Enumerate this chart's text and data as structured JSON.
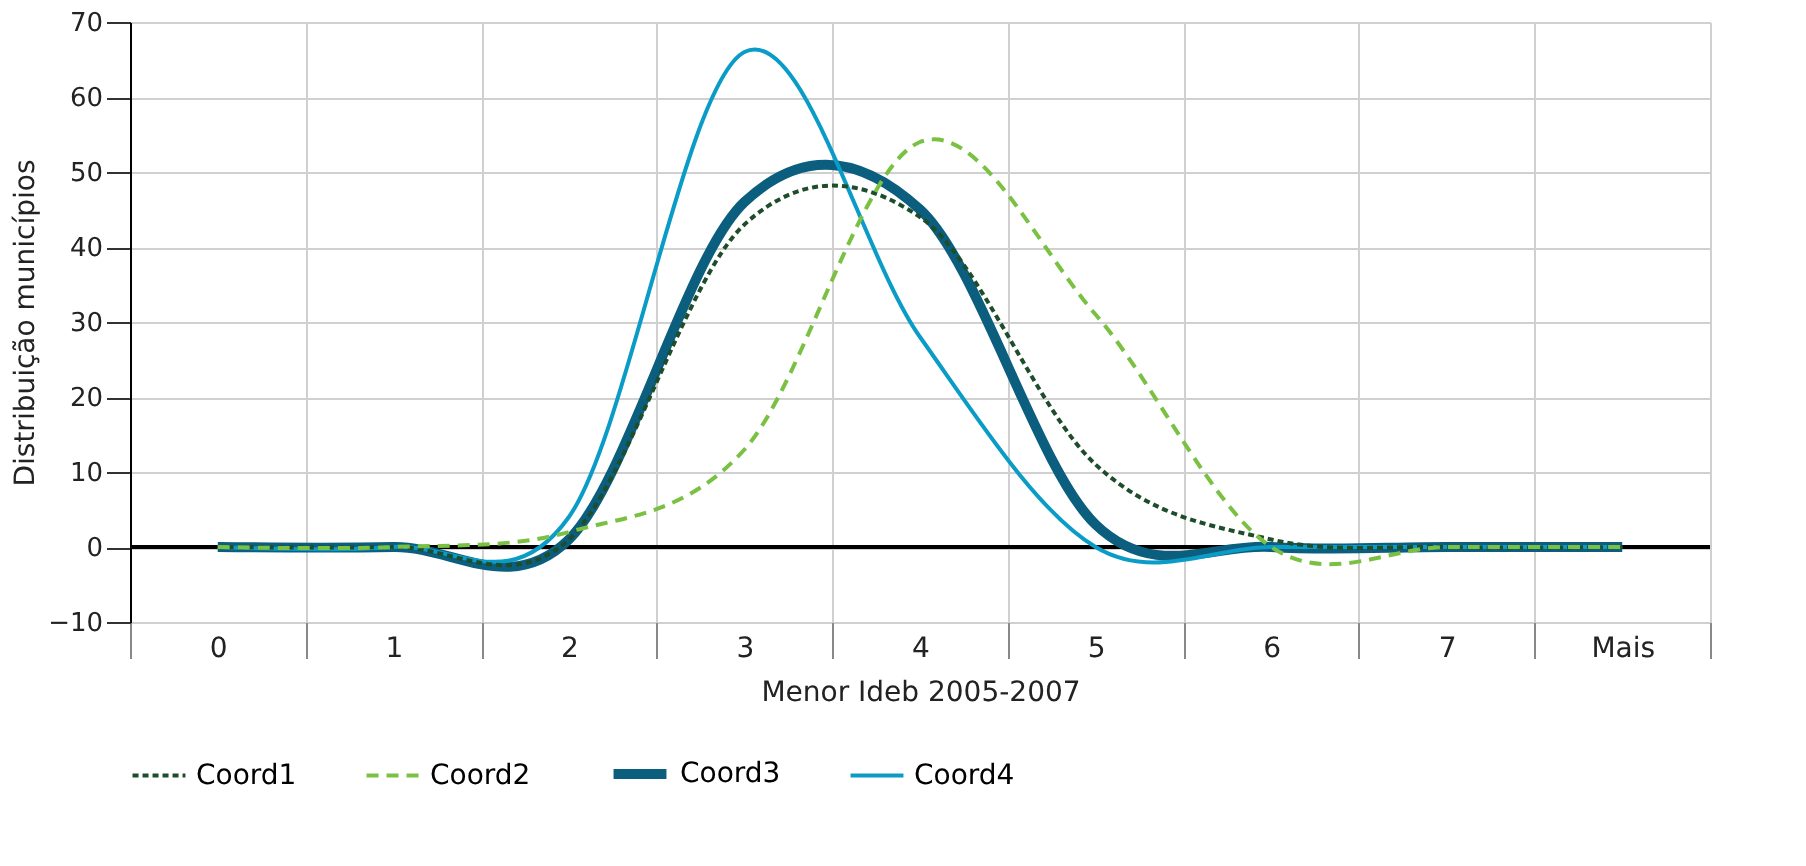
{
  "chart_data": {
    "type": "line",
    "xlabel": "Menor Ideb 2005-2007",
    "ylabel": "Distribuição municípios",
    "categories": [
      "0",
      "1",
      "2",
      "3",
      "4",
      "5",
      "6",
      "7",
      "Mais"
    ],
    "series": [
      {
        "name": "Coord1",
        "color": "#1e4d2b",
        "line_style": "dotted",
        "values": [
          0,
          0,
          1,
          43,
          44,
          11,
          1,
          0,
          0
        ]
      },
      {
        "name": "Coord2",
        "color": "#7ac143",
        "line_style": "dashed",
        "values": [
          0,
          0,
          2,
          13,
          54,
          31,
          0,
          0,
          0
        ]
      },
      {
        "name": "Coord3",
        "color": "#0b5e7e",
        "line_style": "solid",
        "values": [
          0,
          0,
          1,
          46,
          45,
          3,
          0,
          0,
          0
        ]
      },
      {
        "name": "Coord4",
        "color": "#0a9cc7",
        "line_style": "solid",
        "values": [
          0,
          0,
          4,
          66,
          28,
          0,
          0,
          0,
          0
        ]
      }
    ],
    "ylim": [
      -10,
      70
    ],
    "yticks": [
      -10,
      0,
      10,
      20,
      30,
      40,
      50,
      60,
      70
    ],
    "ref_lines": [
      {
        "axis": "y",
        "value": 0,
        "color": "#000000"
      }
    ],
    "grid": true,
    "legend": "bottom"
  }
}
